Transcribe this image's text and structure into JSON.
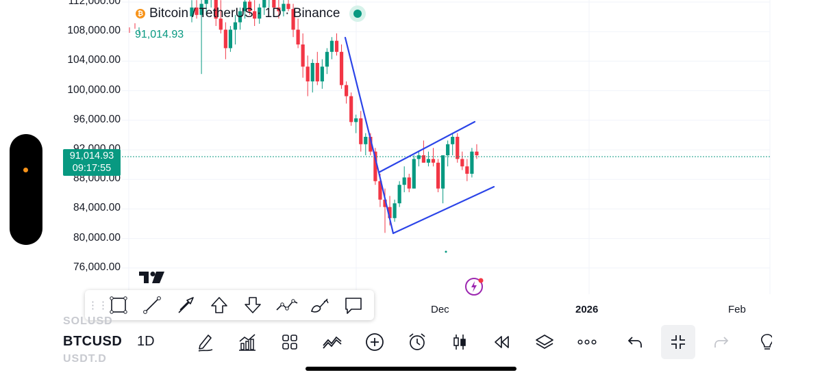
{
  "legend": {
    "title": "Bitcoin / TetherUS · 1D · Binance",
    "last_price": "91,014.93",
    "status_color": "#089981"
  },
  "price_tag": {
    "price": "91,014.93",
    "countdown": "09:17:55"
  },
  "y_axis": [
    "112,000.00",
    "108,000.00",
    "104,000.00",
    "100,000.00",
    "96,000.00",
    "92,000.00",
    "88,000.00",
    "84,000.00",
    "80,000.00",
    "76,000.00"
  ],
  "x_axis": [
    "Dec",
    "2026",
    "Feb"
  ],
  "colors": {
    "up": "#089981",
    "down": "#f23645",
    "drawing": "#2b44e8",
    "accent_orange": "#f7931a"
  },
  "drawing_toolbar": {
    "tools": [
      "rectangle-icon",
      "trend-line-icon",
      "arrow-icon",
      "arrow-up-icon",
      "arrow-down-icon",
      "path-icon",
      "brush-icon",
      "callout-icon"
    ]
  },
  "bottom_bar": {
    "symbol": "BTCUSD",
    "interval": "1D",
    "ghost_above": "SOLUSD",
    "ghost_below": "USDT.D",
    "tools": [
      "pen-icon",
      "indicators-icon",
      "grid-layout-icon",
      "chart-type-icon",
      "add-icon",
      "alarm-icon",
      "candle-icon",
      "replay-icon",
      "layers-icon",
      "more-icon",
      "undo-icon",
      "collapse-icon",
      "redo-icon",
      "lightbulb-icon"
    ]
  }
}
